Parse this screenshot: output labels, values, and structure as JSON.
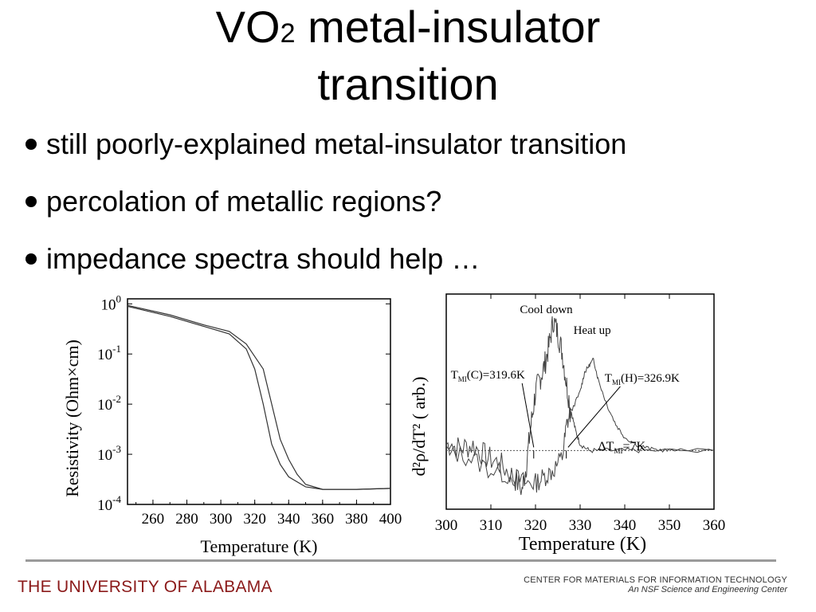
{
  "slide": {
    "title_main": "VO",
    "title_sub": "2",
    "title_rest": " metal-insulator",
    "title_line2": "transition",
    "bullets": [
      "still poorly-explained metal-insulator transition",
      "percolation of metallic regions?",
      "impedance spectra should help …"
    ]
  },
  "chart_data": [
    {
      "type": "line",
      "title": "",
      "xlabel": "Temperature (K)",
      "ylabel": "Resistivity (Ohm×cm)",
      "xlim": [
        245,
        400
      ],
      "ylim_log10": [
        -4,
        0.1
      ],
      "x_ticks": [
        "260",
        "280",
        "300",
        "320",
        "340",
        "360",
        "380",
        "400"
      ],
      "y_ticks": [
        {
          "base": "10",
          "exp": "0"
        },
        {
          "base": "10",
          "exp": "-1"
        },
        {
          "base": "10",
          "exp": "-2"
        },
        {
          "base": "10",
          "exp": "-3"
        },
        {
          "base": "10",
          "exp": "-4"
        }
      ],
      "scale": "log",
      "series": [
        {
          "x": [
            245,
            270,
            290,
            305,
            315,
            320,
            325,
            330,
            335,
            340,
            350,
            360,
            380,
            400
          ],
          "log10_y": [
            -0.05,
            -0.25,
            -0.45,
            -0.6,
            -0.9,
            -1.3,
            -2.0,
            -2.8,
            -3.2,
            -3.45,
            -3.65,
            -3.7,
            -3.7,
            -3.68
          ]
        },
        {
          "x": [
            245,
            270,
            290,
            305,
            315,
            325,
            330,
            335,
            340,
            345,
            350,
            360,
            380,
            400
          ],
          "log10_y": [
            -0.03,
            -0.22,
            -0.42,
            -0.55,
            -0.8,
            -1.3,
            -2.0,
            -2.7,
            -3.1,
            -3.4,
            -3.6,
            -3.7,
            -3.7,
            -3.68
          ]
        }
      ]
    },
    {
      "type": "line",
      "title": "",
      "xlabel": "Temperature (K)",
      "ylabel": "d²ρ/dT² ( arb.)",
      "xlim": [
        300,
        360
      ],
      "x_ticks": [
        "300",
        "310",
        "320",
        "330",
        "340",
        "350",
        "360"
      ],
      "series": [
        {
          "name": "Cool down",
          "x": [
            300,
            303,
            306,
            309,
            312,
            315,
            317,
            318,
            319,
            320,
            321,
            322,
            323,
            324,
            325,
            326,
            327,
            328,
            329,
            330,
            332,
            335,
            340,
            345,
            360
          ],
          "y": [
            0.05,
            0.02,
            0.04,
            -0.05,
            -0.1,
            -0.2,
            -0.3,
            -0.1,
            0.2,
            0.45,
            0.55,
            0.65,
            0.8,
            1.0,
            0.9,
            0.75,
            0.5,
            0.3,
            0.15,
            0.05,
            0.0,
            0.0,
            0.0,
            0.0,
            0.0
          ]
        },
        {
          "name": "Heat up",
          "x": [
            300,
            305,
            310,
            315,
            318,
            320,
            322,
            324,
            326,
            327,
            328,
            330,
            331,
            332,
            333,
            334,
            336,
            338,
            340,
            343,
            346,
            350,
            360
          ],
          "y": [
            0.0,
            -0.05,
            -0.15,
            -0.2,
            -0.25,
            -0.25,
            -0.2,
            -0.15,
            -0.05,
            0.2,
            0.3,
            0.45,
            0.6,
            0.65,
            0.7,
            0.55,
            0.35,
            0.2,
            0.1,
            0.04,
            0.01,
            0.0,
            0.0
          ]
        }
      ],
      "annotations": {
        "cool": "Cool down",
        "heat": "Heat up",
        "tc_base": "T",
        "tc_sub": "MI",
        "tc_val": "(C)=319.6K",
        "th_base": "T",
        "th_sub": "MI",
        "th_val": "(H)=326.9K",
        "dt_base": "ΔT",
        "dt_sub": "MI",
        "dt_val": "=7K"
      }
    }
  ],
  "footer": {
    "left": "THE UNIVERSITY OF ALABAMA",
    "right_line1": "CENTER FOR MATERIALS FOR INFORMATION TECHNOLOGY",
    "right_line2": "An NSF Science and Engineering Center"
  },
  "colors": {
    "footer_left": "#8b1a1a",
    "rule": "#9a9a9a"
  }
}
